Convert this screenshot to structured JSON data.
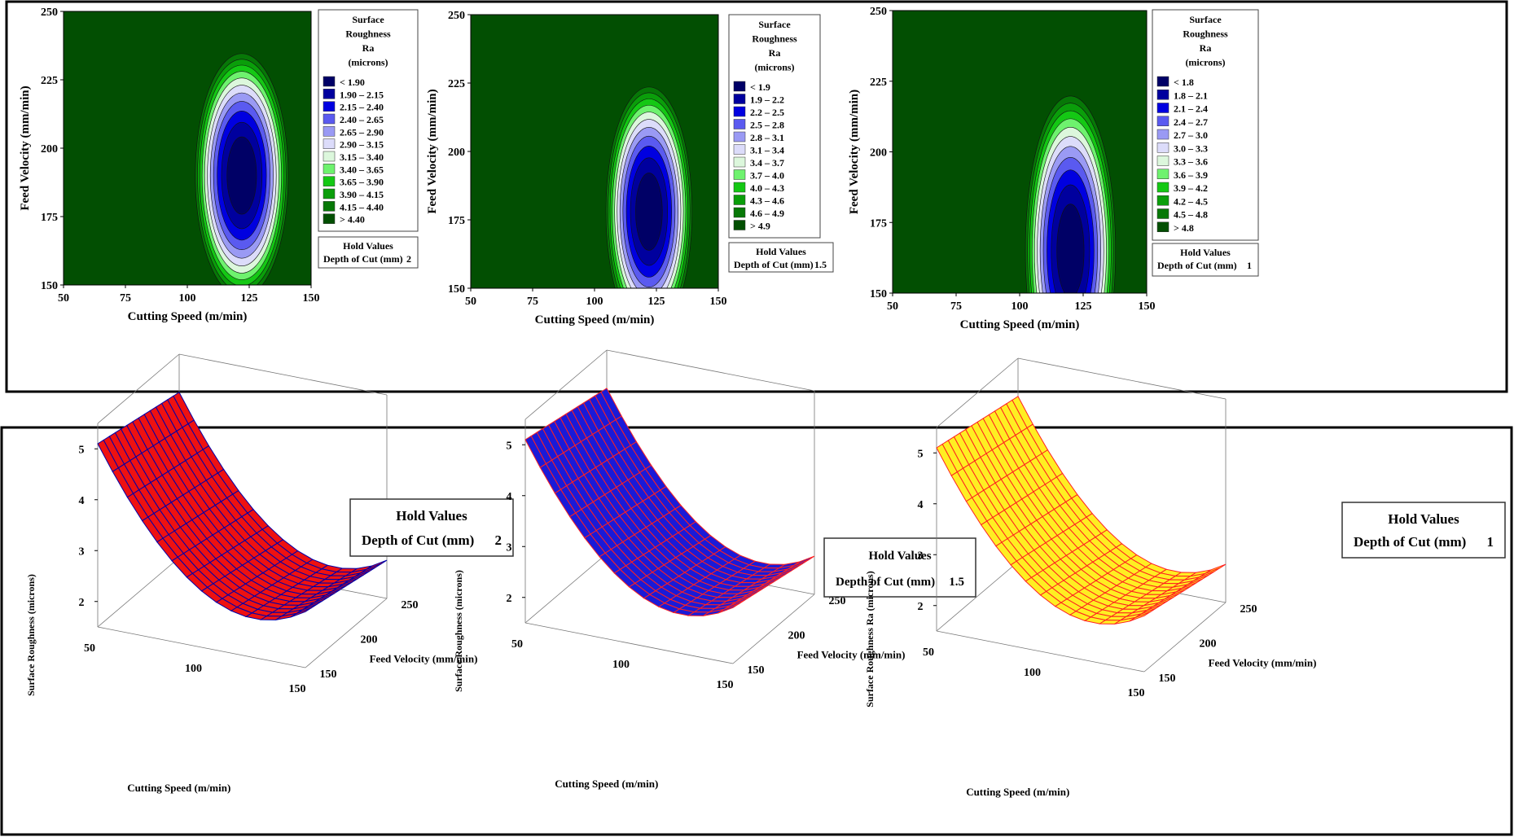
{
  "contour_colors": [
    "#000066",
    "#00009e",
    "#0000e0",
    "#5a5af0",
    "#9a9af4",
    "#dcdcfa",
    "#dcf7dc",
    "#6ef26e",
    "#14c814",
    "#0a9e0a",
    "#077807",
    "#024f02"
  ],
  "contour_legend_title": [
    "Surface",
    "Roughness",
    "Ra",
    "(microns)"
  ],
  "hold_values_title": "Hold Values",
  "surface_colors": {
    "red": "#ee1111",
    "blue": "#1a1ad8",
    "yellow": "#ffee22"
  },
  "chart_data": [
    {
      "type": "contour",
      "xlabel": "Cutting Speed (m/min)",
      "ylabel": "Feed Velocity (mm/min)",
      "xlim": [
        50,
        150
      ],
      "ylim": [
        150,
        250
      ],
      "xticks": [
        "50",
        "75",
        "100",
        "125",
        "150"
      ],
      "yticks": [
        "150",
        "175",
        "200",
        "225",
        "250"
      ],
      "levels": [
        1.9,
        2.15,
        2.4,
        2.65,
        2.9,
        3.15,
        3.4,
        3.65,
        3.9,
        4.15,
        4.4
      ],
      "legend": [
        "< 1.90",
        "1.90 – 2.15",
        "2.15 – 2.40",
        "2.40 – 2.65",
        "2.65 – 2.90",
        "2.90 – 3.15",
        "3.15 – 3.40",
        "3.40 – 3.65",
        "3.65 – 3.90",
        "3.90 – 4.15",
        "4.15 – 4.40",
        "> 4.40"
      ],
      "model": {
        "base": 1.62,
        "x0": 122,
        "y0": 190,
        "ax": 0.0079,
        "ay": 0.0014
      },
      "hold_label": "Depth of Cut (mm)",
      "hold_value": "2"
    },
    {
      "type": "contour",
      "xlabel": "Cutting Speed (m/min)",
      "ylabel": "Feed Velocity (mm/min)",
      "xlim": [
        50,
        150
      ],
      "ylim": [
        150,
        250
      ],
      "xticks": [
        "50",
        "75",
        "100",
        "125",
        "150"
      ],
      "yticks": [
        "150",
        "175",
        "200",
        "225",
        "250"
      ],
      "levels": [
        1.9,
        2.2,
        2.5,
        2.8,
        3.1,
        3.4,
        3.7,
        4.0,
        4.3,
        4.6,
        4.9
      ],
      "legend": [
        "< 1.9",
        "1.9 – 2.2",
        "2.2 – 2.5",
        "2.5 – 2.8",
        "2.8 – 3.1",
        "3.1 – 3.4",
        "3.4 – 3.7",
        "3.7 – 4.0",
        "4.0 – 4.3",
        "4.3 – 4.6",
        "4.6 – 4.9",
        "> 4.9"
      ],
      "model": {
        "base": 1.58,
        "x0": 122,
        "y0": 178,
        "ax": 0.011,
        "ay": 0.0016
      },
      "hold_label": "Depth of Cut (mm)",
      "hold_value": "1.5"
    },
    {
      "type": "contour",
      "xlabel": "Cutting Speed (m/min)",
      "ylabel": "Feed Velocity (mm/min)",
      "xlim": [
        50,
        150
      ],
      "ylim": [
        150,
        250
      ],
      "xticks": [
        "50",
        "75",
        "100",
        "125",
        "150"
      ],
      "yticks": [
        "150",
        "175",
        "200",
        "225",
        "250"
      ],
      "levels": [
        1.8,
        2.1,
        2.4,
        2.7,
        3.0,
        3.3,
        3.6,
        3.9,
        4.2,
        4.5,
        4.8
      ],
      "legend": [
        "< 1.8",
        "1.8 – 2.1",
        "2.1 – 2.4",
        "2.4 – 2.7",
        "2.7 – 3.0",
        "3.0 – 3.3",
        "3.3 – 3.6",
        "3.6 – 3.9",
        "3.9 – 4.2",
        "4.2 – 4.5",
        "4.5 – 4.8",
        "> 4.8"
      ],
      "model": {
        "base": 1.5,
        "x0": 120,
        "y0": 165,
        "ax": 0.0105,
        "ay": 0.0011
      },
      "hold_label": "Depth of Cut (mm)",
      "hold_value": "1"
    },
    {
      "type": "surface",
      "zlabel": "Surface Roughness (microns)",
      "xlabel": "Cutting Speed (m/min)",
      "ylabel": "Feed Velocity (mm/min)",
      "xticks": [
        "50",
        "100",
        "150"
      ],
      "yticks": [
        "150",
        "200",
        "250"
      ],
      "zticks": [
        "2",
        "3",
        "4",
        "5"
      ],
      "fill": "red",
      "mesh": "#0000aa",
      "hold_label": "Depth of Cut (mm)",
      "hold_value": "2"
    },
    {
      "type": "surface",
      "zlabel": "Surface Roughness (microns)",
      "xlabel": "Cutting Speed (m/min)",
      "ylabel": "Feed Velocity (mm/min)",
      "xticks": [
        "50",
        "100",
        "150"
      ],
      "yticks": [
        "150",
        "200",
        "250"
      ],
      "zticks": [
        "2",
        "3",
        "4",
        "5"
      ],
      "fill": "blue",
      "mesh": "#ff2020",
      "hold_label": "Depth of Cut (mm)",
      "hold_value": "1.5"
    },
    {
      "type": "surface",
      "zlabel": "Surface Roughness Ra (microns)",
      "xlabel": "Cutting Speed (m/min)",
      "ylabel": "Feed Velocity (mm/min)",
      "xticks": [
        "50",
        "100",
        "150"
      ],
      "yticks": [
        "150",
        "200",
        "250"
      ],
      "zticks": [
        "2",
        "3",
        "4",
        "5"
      ],
      "fill": "yellow",
      "mesh": "#ff2020",
      "hold_label": "Depth of Cut (mm)",
      "hold_value": "1"
    }
  ]
}
